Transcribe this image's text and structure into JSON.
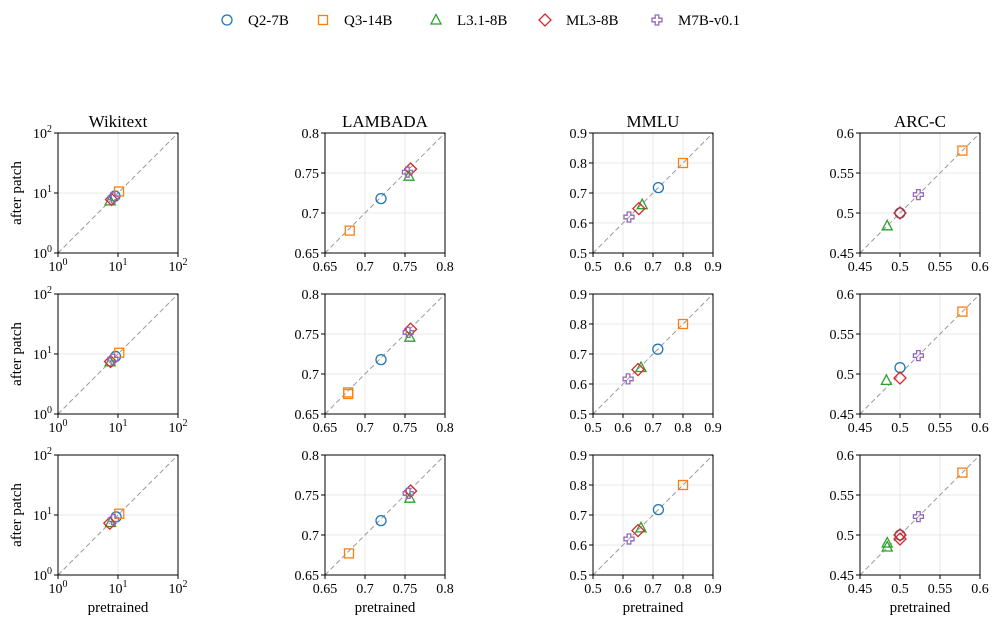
{
  "legend": {
    "position": "top-center",
    "items": [
      {
        "label": "Q2-7B",
        "marker": "circle",
        "color": "#1f77b4"
      },
      {
        "label": "Q3-14B",
        "marker": "square",
        "color": "#ff7f0e"
      },
      {
        "label": "L3.1-8B",
        "marker": "triangle",
        "color": "#2ca02c"
      },
      {
        "label": "ML3-8B",
        "marker": "diamond",
        "color": "#d62728"
      },
      {
        "label": "M7B-v0.1",
        "marker": "plus",
        "color": "#9467bd"
      }
    ]
  },
  "chart_data": {
    "type": "scatter",
    "ylabel": "after patch",
    "xlabel": "pretrained",
    "grid": true,
    "diagonal_reference_line": true,
    "series_names": [
      "Q2-7B",
      "Q3-14B",
      "L3.1-8B",
      "ML3-8B",
      "M7B-v0.1"
    ],
    "columns": [
      {
        "title": "Wikitext",
        "scale": "log",
        "lim": [
          1,
          100
        ],
        "ticks": [
          {
            "v": 1,
            "base": "10",
            "exp": "0"
          },
          {
            "v": 10,
            "base": "10",
            "exp": "1"
          },
          {
            "v": 100,
            "base": "10",
            "exp": "2"
          }
        ]
      },
      {
        "title": "LAMBADA",
        "scale": "linear",
        "lim": [
          0.65,
          0.8
        ],
        "ticks": [
          {
            "v": 0.65,
            "label": "0.65"
          },
          {
            "v": 0.7,
            "label": "0.7"
          },
          {
            "v": 0.75,
            "label": "0.75"
          },
          {
            "v": 0.8,
            "label": "0.8"
          }
        ]
      },
      {
        "title": "MMLU",
        "scale": "linear",
        "lim": [
          0.5,
          0.9
        ],
        "ticks": [
          {
            "v": 0.5,
            "label": "0.5"
          },
          {
            "v": 0.6,
            "label": "0.6"
          },
          {
            "v": 0.7,
            "label": "0.7"
          },
          {
            "v": 0.8,
            "label": "0.8"
          },
          {
            "v": 0.9,
            "label": "0.9"
          }
        ]
      },
      {
        "title": "ARC-C",
        "scale": "linear",
        "lim": [
          0.45,
          0.6
        ],
        "ticks": [
          {
            "v": 0.45,
            "label": "0.45"
          },
          {
            "v": 0.5,
            "label": "0.5"
          },
          {
            "v": 0.55,
            "label": "0.55"
          },
          {
            "v": 0.6,
            "label": "0.6"
          }
        ]
      }
    ],
    "panels": [
      [
        [
          [
            [
              8.9,
              8.9
            ]
          ],
          [
            [
              10.4,
              10.6
            ]
          ],
          [
            [
              7.4,
              7.4
            ]
          ],
          [
            [
              7.8,
              7.8
            ]
          ],
          [
            [
              8.3,
              8.3
            ]
          ]
        ],
        [
          [
            [
              0.72,
              0.718
            ]
          ],
          [
            [
              0.681,
              0.678
            ]
          ],
          [
            [
              0.755,
              0.746
            ]
          ],
          [
            [
              0.757,
              0.755
            ]
          ],
          [
            [
              0.753,
              0.751
            ]
          ]
        ],
        [
          [
            [
              0.718,
              0.718
            ]
          ],
          [
            [
              0.8,
              0.8
            ]
          ],
          [
            [
              0.664,
              0.661
            ]
          ],
          [
            [
              0.653,
              0.648
            ]
          ],
          [
            [
              0.62,
              0.62
            ]
          ]
        ],
        [
          [
            [
              0.5,
              0.5
            ]
          ],
          [
            [
              0.578,
              0.578
            ]
          ],
          [
            [
              0.484,
              0.484
            ]
          ],
          [
            [
              0.5,
              0.5
            ]
          ],
          [
            [
              0.523,
              0.523
            ]
          ]
        ]
      ],
      [
        [
          [
            [
              9.1,
              9.1
            ]
          ],
          [
            [
              10.5,
              10.5
            ]
          ],
          [
            [
              7.4,
              7.4
            ]
          ],
          [
            [
              7.5,
              7.5
            ]
          ],
          [
            [
              8.2,
              8.2
            ]
          ]
        ],
        [
          [
            [
              0.72,
              0.718
            ]
          ],
          [
            [
              0.679,
              0.677
            ],
            [
              0.679,
              0.675
            ]
          ],
          [
            [
              0.756,
              0.746
            ]
          ],
          [
            [
              0.757,
              0.756
            ]
          ],
          [
            [
              0.754,
              0.752
            ]
          ]
        ],
        [
          [
            [
              0.716,
              0.716
            ]
          ],
          [
            [
              0.8,
              0.8
            ]
          ],
          [
            [
              0.66,
              0.655
            ]
          ],
          [
            [
              0.65,
              0.648
            ]
          ],
          [
            [
              0.617,
              0.617
            ]
          ]
        ],
        [
          [
            [
              0.5,
              0.508
            ]
          ],
          [
            [
              0.578,
              0.578
            ]
          ],
          [
            [
              0.483,
              0.492
            ]
          ],
          [
            [
              0.5,
              0.495
            ]
          ],
          [
            [
              0.523,
              0.523
            ]
          ]
        ]
      ],
      [
        [
          [
            [
              9.3,
              9.3
            ]
          ],
          [
            [
              10.5,
              10.5
            ]
          ],
          [
            [
              7.5,
              7.5
            ]
          ],
          [
            [
              7.3,
              7.3
            ]
          ],
          [
            [
              8.4,
              8.4
            ]
          ]
        ],
        [
          [
            [
              0.72,
              0.718
            ]
          ],
          [
            [
              0.68,
              0.677
            ]
          ],
          [
            [
              0.756,
              0.746
            ]
          ],
          [
            [
              0.757,
              0.755
            ]
          ],
          [
            [
              0.754,
              0.752
            ]
          ]
        ],
        [
          [
            [
              0.718,
              0.718
            ]
          ],
          [
            [
              0.8,
              0.8
            ]
          ],
          [
            [
              0.66,
              0.657
            ]
          ],
          [
            [
              0.65,
              0.648
            ]
          ],
          [
            [
              0.62,
              0.62
            ]
          ]
        ],
        [
          [
            [
              0.5,
              0.5
            ]
          ],
          [
            [
              0.578,
              0.578
            ]
          ],
          [
            [
              0.484,
              0.49
            ],
            [
              0.484,
              0.485
            ]
          ],
          [
            [
              0.5,
              0.495
            ],
            [
              0.5,
              0.5
            ]
          ],
          [
            [
              0.523,
              0.523
            ]
          ]
        ]
      ]
    ]
  }
}
